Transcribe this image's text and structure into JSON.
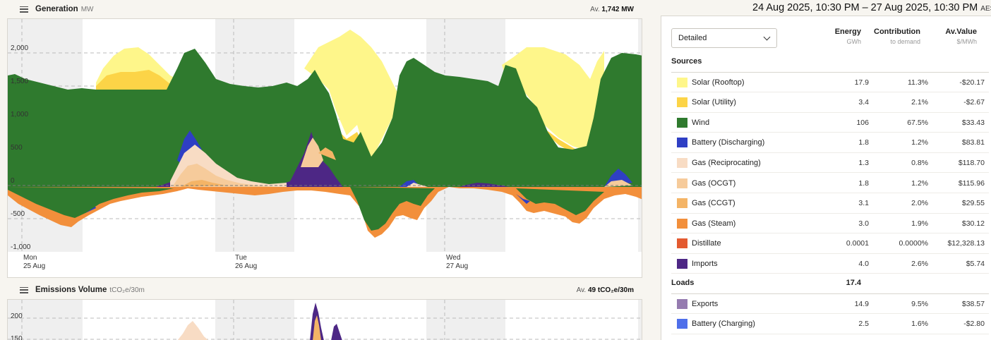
{
  "generation": {
    "title": "Generation",
    "unit": "MW",
    "avg_prefix": "Av.",
    "avg_value": "1,742 MW",
    "y_ticks": [
      "2,000",
      "1,500",
      "1,000",
      "500",
      "0",
      "-500",
      "-1,000"
    ],
    "x_ticks": [
      {
        "day": "Mon",
        "date": "25 Aug"
      },
      {
        "day": "Tue",
        "date": "26 Aug"
      },
      {
        "day": "Wed",
        "date": "27 Aug"
      }
    ]
  },
  "emissions": {
    "title": "Emissions Volume",
    "unit": "tCO₂e/30m",
    "avg_prefix": "Av.",
    "avg_value": "49 tCO₂e/30m",
    "y_ticks": [
      "200",
      "150"
    ]
  },
  "date_range": {
    "text": "24 Aug 2025, 10:30 PM – 27 Aug 2025, 10:30 PM",
    "tz": "AEST"
  },
  "selector": {
    "value": "Detailed"
  },
  "columns": [
    {
      "title": "Energy",
      "unit": "GWh"
    },
    {
      "title": "Contribution",
      "unit": "to demand"
    },
    {
      "title": "Av.Value",
      "unit": "$/MWh"
    }
  ],
  "sources_label": "Sources",
  "sources": [
    {
      "label": "Solar (Rooftop)",
      "energy": "17.9",
      "contribution": "11.3%",
      "value": "-$20.17",
      "color": "#fef68a"
    },
    {
      "label": "Solar (Utility)",
      "energy": "3.4",
      "contribution": "2.1%",
      "value": "-$2.67",
      "color": "#fcd447"
    },
    {
      "label": "Wind",
      "energy": "106",
      "contribution": "67.5%",
      "value": "$33.43",
      "color": "#2f7a2e"
    },
    {
      "label": "Battery (Discharging)",
      "energy": "1.8",
      "contribution": "1.2%",
      "value": "$83.81",
      "color": "#2f3fc4"
    },
    {
      "label": "Gas (Reciprocating)",
      "energy": "1.3",
      "contribution": "0.8%",
      "value": "$118.70",
      "color": "#f8dcc4"
    },
    {
      "label": "Gas (OCGT)",
      "energy": "1.8",
      "contribution": "1.2%",
      "value": "$115.96",
      "color": "#f6cb9b"
    },
    {
      "label": "Gas (CCGT)",
      "energy": "3.1",
      "contribution": "2.0%",
      "value": "$29.55",
      "color": "#f4b466"
    },
    {
      "label": "Gas (Steam)",
      "energy": "3.0",
      "contribution": "1.9%",
      "value": "$30.12",
      "color": "#f28f3b"
    },
    {
      "label": "Distillate",
      "energy": "0.0001",
      "contribution": "0.0000%",
      "value": "$12,328.13",
      "color": "#e35a30"
    },
    {
      "label": "Imports",
      "energy": "4.0",
      "contribution": "2.6%",
      "value": "$5.74",
      "color": "#4d2785"
    }
  ],
  "loads_label": "Loads",
  "loads_total": "17.4",
  "loads": [
    {
      "label": "Exports",
      "energy": "14.9",
      "contribution": "9.5%",
      "value": "$38.57",
      "color": "#957bb0"
    },
    {
      "label": "Battery (Charging)",
      "energy": "2.5",
      "contribution": "1.6%",
      "value": "-$2.80",
      "color": "#4f6fea"
    }
  ]
}
